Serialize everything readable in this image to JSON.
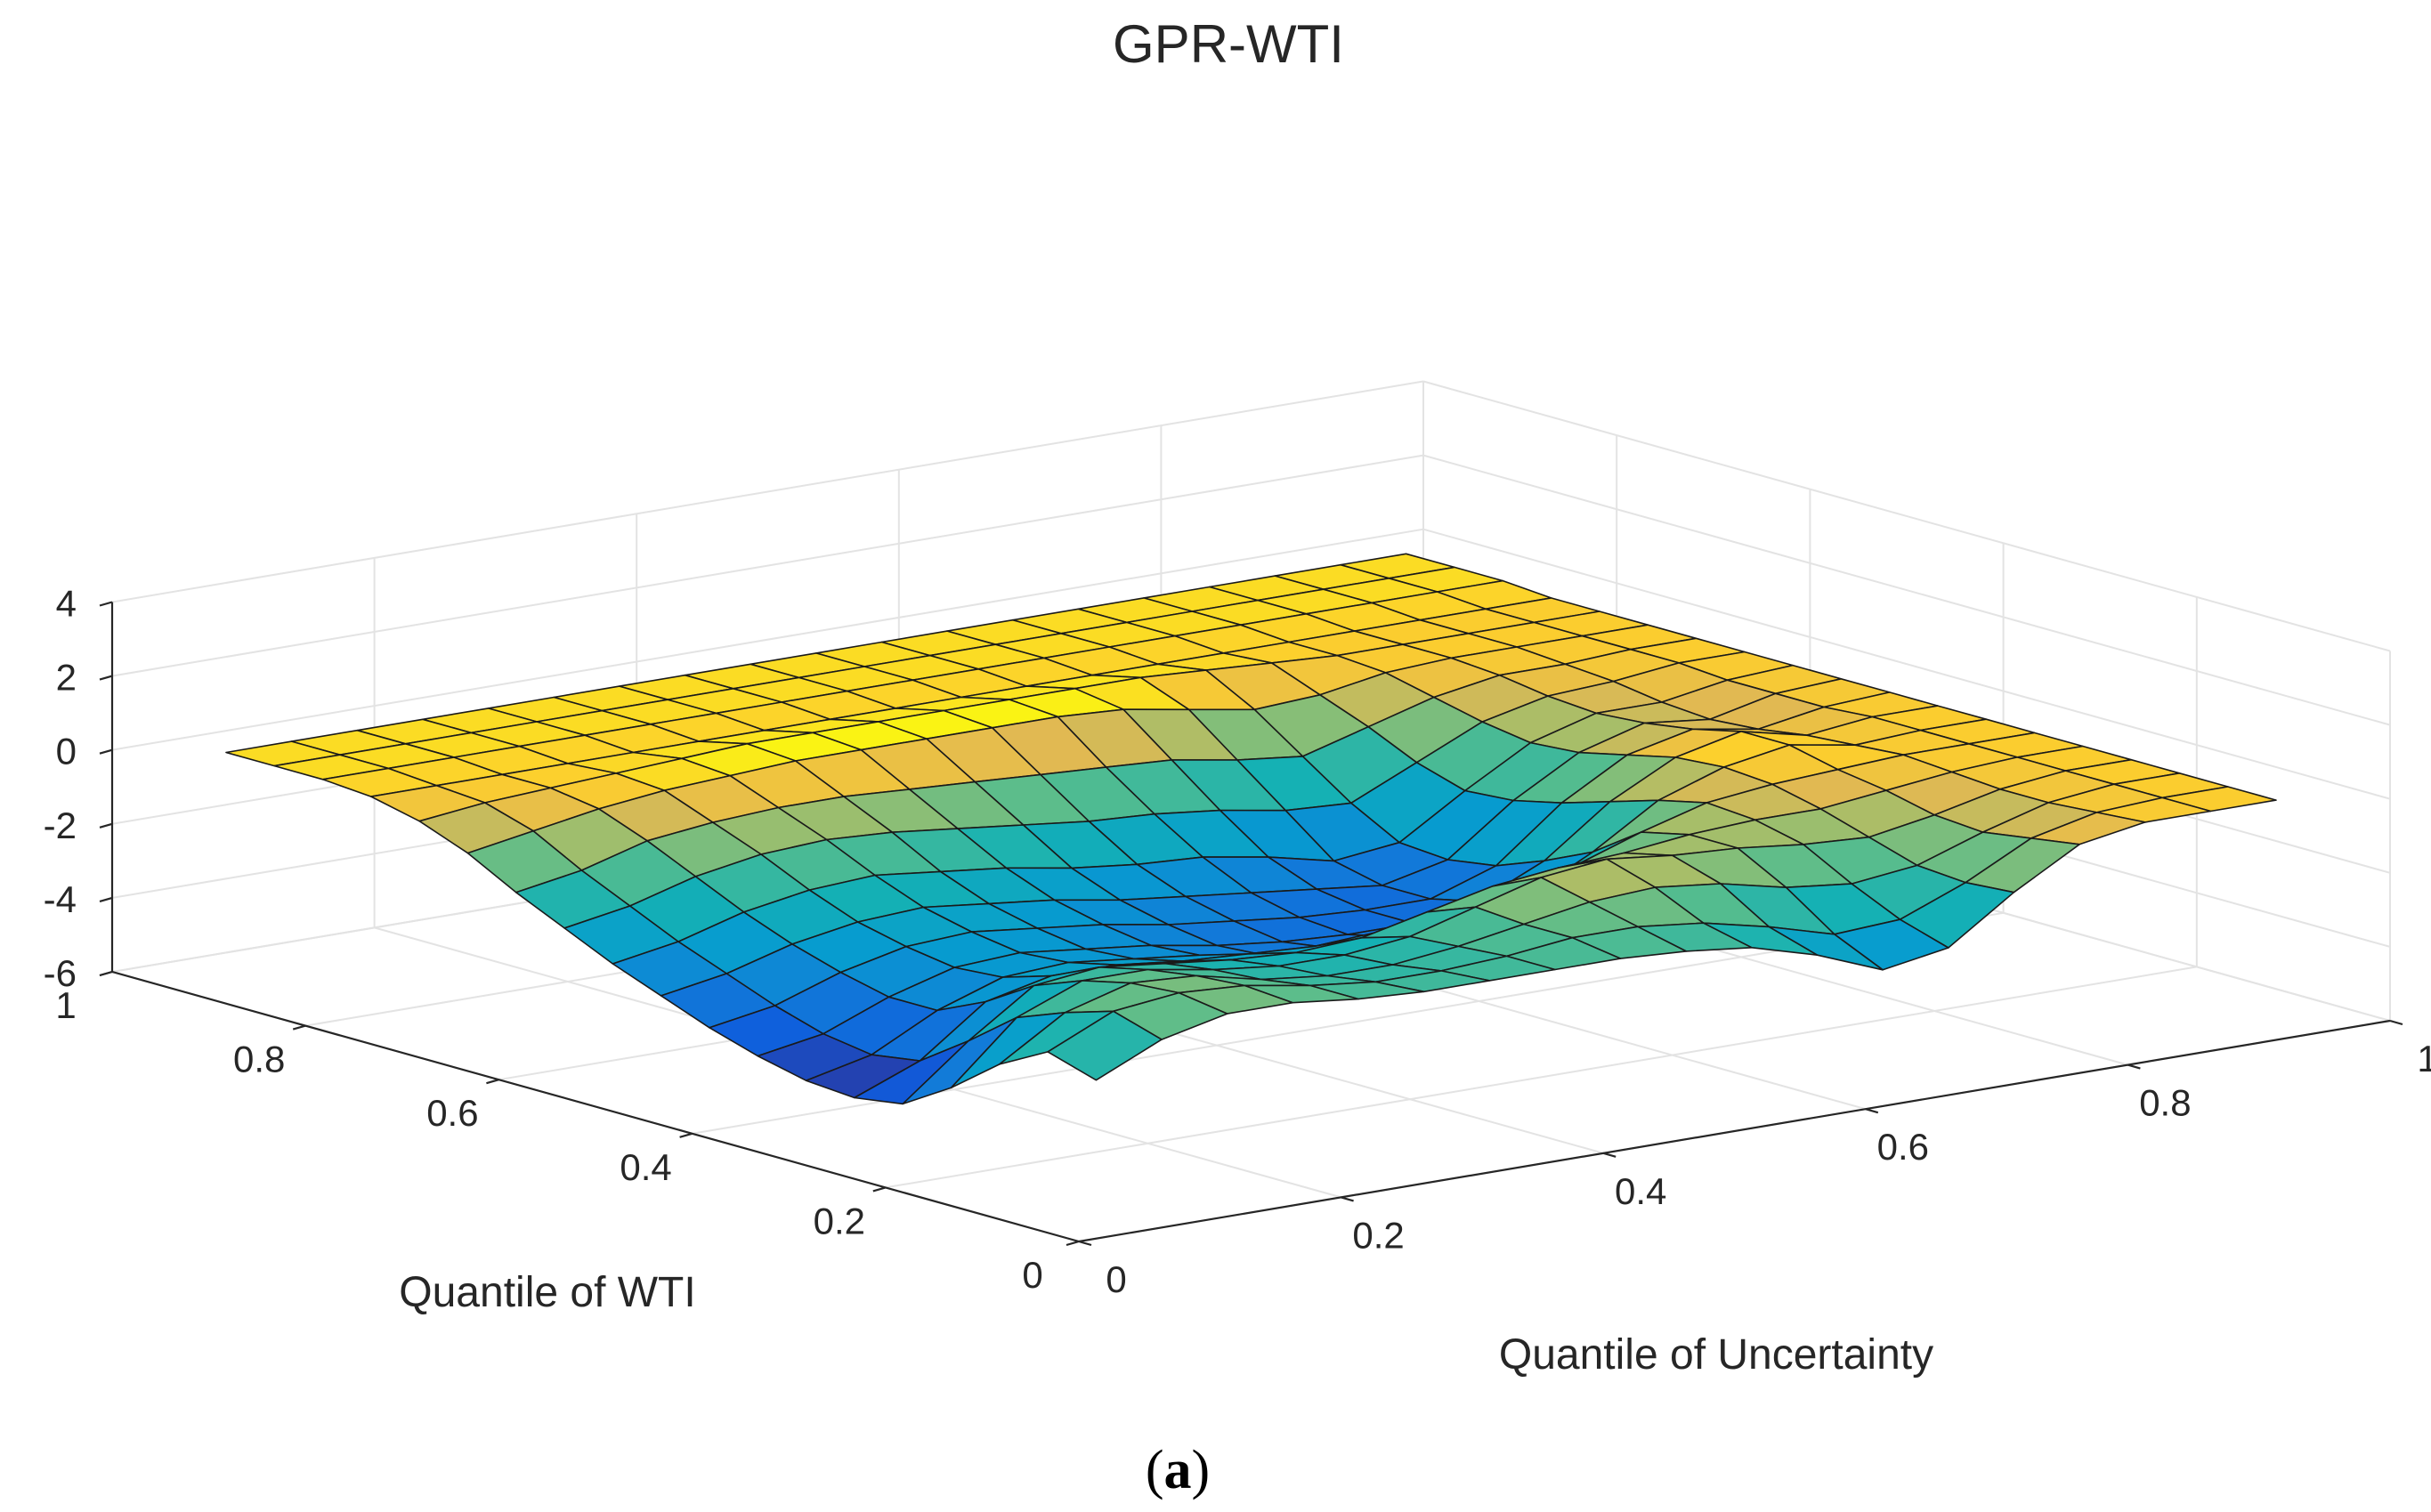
{
  "chart_data": {
    "type": "surface",
    "title": "GPR-WTI",
    "panel_label": "(a)",
    "panel_letter": "a",
    "xlabel": "Quantile of Uncertainty",
    "ylabel": "Quantile of WTI",
    "xlim": [
      0,
      1
    ],
    "ylim": [
      0,
      1
    ],
    "zlim": [
      -6,
      4
    ],
    "grid": true,
    "colormap": "parula",
    "x_ticks": [
      "0",
      "0.2",
      "0.4",
      "0.6",
      "0.8",
      "1"
    ],
    "y_ticks": [
      "0",
      "0.2",
      "0.4",
      "0.6",
      "0.8",
      "1"
    ],
    "z_ticks": [
      "-6",
      "-4",
      "-2",
      "0",
      "2",
      "4"
    ],
    "uncertainty_quantiles": [
      0.05,
      0.1,
      0.15,
      0.2,
      0.25,
      0.3,
      0.35,
      0.4,
      0.45,
      0.5,
      0.55,
      0.6,
      0.65,
      0.7,
      0.75,
      0.8,
      0.85,
      0.9,
      0.95
    ],
    "wti_quantiles": [
      0.95,
      0.9,
      0.85,
      0.8,
      0.75,
      0.7,
      0.65,
      0.6,
      0.55,
      0.5,
      0.45,
      0.4,
      0.35,
      0.3,
      0.25,
      0.2,
      0.15,
      0.1,
      0.05
    ],
    "z_values": [
      [
        0.0,
        0.0,
        0.0,
        0.0,
        0.0,
        0.0,
        0.0,
        0.0,
        0.0,
        0.0,
        0.0,
        0.0,
        0.0,
        0.0,
        0.0,
        0.0,
        0.0,
        0.0,
        0.0
      ],
      [
        0.0,
        0.0,
        0.0,
        0.0,
        0.0,
        0.0,
        0.0,
        0.0,
        0.0,
        0.0,
        0.0,
        0.0,
        0.0,
        0.0,
        0.0,
        0.0,
        0.0,
        0.0,
        0.0
      ],
      [
        0.0,
        0.0,
        0.0,
        0.0,
        0.0,
        0.0,
        0.0,
        0.0,
        0.0,
        0.0,
        0.0,
        0.0,
        0.0,
        0.0,
        0.0,
        0.0,
        0.0,
        0.0,
        0.0
      ],
      [
        -0.1,
        -0.1,
        -0.1,
        -0.1,
        -0.1,
        -0.1,
        -0.1,
        -0.1,
        -0.1,
        -0.1,
        -0.1,
        -0.1,
        -0.1,
        -0.1,
        -0.1,
        -0.1,
        -0.1,
        -0.1,
        -0.1
      ],
      [
        -0.4,
        -0.2,
        -0.1,
        0.0,
        0.1,
        0.2,
        0.2,
        0.2,
        0.2,
        0.2,
        0.2,
        0.2,
        0.1,
        0.0,
        -0.1,
        -0.1,
        -0.1,
        -0.1,
        -0.1
      ],
      [
        -0.9,
        -0.6,
        -0.3,
        -0.1,
        0.0,
        0.1,
        0.1,
        0.1,
        0.1,
        0.1,
        0.0,
        -0.3,
        -0.6,
        -0.5,
        -0.2,
        -0.1,
        -0.1,
        -0.1,
        -0.1
      ],
      [
        -1.6,
        -1.3,
        -0.8,
        -0.6,
        -0.5,
        -0.5,
        -0.6,
        -0.7,
        -0.8,
        -0.9,
        -1.0,
        -1.3,
        -1.5,
        -1.0,
        -0.5,
        -0.2,
        -0.2,
        -0.1,
        -0.1
      ],
      [
        -2.2,
        -1.9,
        -1.4,
        -1.1,
        -1.0,
        -1.1,
        -1.3,
        -1.5,
        -1.7,
        -1.8,
        -2.0,
        -2.3,
        -2.4,
        -1.6,
        -0.8,
        -0.4,
        -0.3,
        -0.1,
        -0.1
      ],
      [
        -2.8,
        -2.5,
        -2.0,
        -1.7,
        -1.6,
        -1.8,
        -2.0,
        -2.3,
        -2.5,
        -2.6,
        -2.9,
        -3.3,
        -3.1,
        -2.0,
        -1.0,
        -0.5,
        -0.5,
        -0.2,
        -0.1
      ],
      [
        -3.3,
        -3.0,
        -2.5,
        -2.2,
        -2.1,
        -2.3,
        -2.5,
        -2.8,
        -3.0,
        -3.2,
        -3.4,
        -3.6,
        -3.2,
        -1.9,
        -0.9,
        -0.4,
        -0.6,
        -0.2,
        -0.1
      ],
      [
        -3.8,
        -3.5,
        -2.9,
        -2.5,
        -2.4,
        -2.6,
        -2.8,
        -3.1,
        -3.3,
        -3.5,
        -3.6,
        -3.6,
        -3.0,
        -1.6,
        -0.6,
        -0.2,
        -0.5,
        -0.2,
        -0.1
      ],
      [
        -4.2,
        -3.9,
        -3.2,
        -2.7,
        -2.6,
        -2.8,
        -3.0,
        -3.3,
        -3.5,
        -3.6,
        -3.6,
        -3.3,
        -2.5,
        -1.2,
        -0.3,
        0.1,
        -0.3,
        -0.1,
        -0.1
      ],
      [
        -4.5,
        -4.1,
        -3.2,
        -2.6,
        -2.5,
        -2.7,
        -2.9,
        -3.2,
        -3.3,
        -3.3,
        -3.2,
        -2.8,
        -1.9,
        -0.8,
        -0.2,
        0.1,
        -0.2,
        -0.1,
        -0.1
      ],
      [
        -4.6,
        -3.9,
        -2.6,
        -2.2,
        -2.2,
        -2.4,
        -2.5,
        -2.6,
        -2.5,
        -2.3,
        -2.1,
        -1.6,
        -1.0,
        -0.5,
        -0.3,
        -0.2,
        -0.1,
        -0.1,
        -0.1
      ],
      [
        -4.4,
        -3.0,
        -1.8,
        -1.6,
        -1.8,
        -2.0,
        -2.1,
        -2.0,
        -1.6,
        -1.2,
        -1.0,
        -0.9,
        -0.7,
        -0.6,
        -0.6,
        -0.4,
        -0.2,
        -0.1,
        -0.1
      ],
      [
        -3.6,
        -2.0,
        -1.3,
        -1.3,
        -1.6,
        -1.8,
        -1.8,
        -1.6,
        -1.1,
        -0.6,
        -0.4,
        -0.6,
        -0.7,
        -0.9,
        -1.0,
        -0.7,
        -0.3,
        -0.1,
        -0.1
      ],
      [
        -2.6,
        -1.5,
        -1.0,
        -1.1,
        -1.5,
        -1.7,
        -1.7,
        -1.5,
        -1.2,
        -0.9,
        -0.8,
        -1.0,
        -1.4,
        -1.6,
        -1.4,
        -0.8,
        -0.3,
        -0.1,
        -0.1
      ],
      [
        -1.9,
        -1.1,
        -0.9,
        -1.0,
        -1.3,
        -1.5,
        -1.5,
        -1.4,
        -1.2,
        -1.2,
        -1.4,
        -1.8,
        -2.3,
        -2.2,
        -1.5,
        -0.6,
        -0.2,
        -0.1,
        -0.1
      ],
      [
        -2.3,
        -1.5,
        -1.1,
        -1.1,
        -1.3,
        -1.4,
        -1.4,
        -1.4,
        -1.4,
        -1.5,
        -1.7,
        -2.2,
        -2.9,
        -2.6,
        -1.4,
        -0.4,
        -0.1,
        -0.1,
        -0.1
      ]
    ]
  }
}
